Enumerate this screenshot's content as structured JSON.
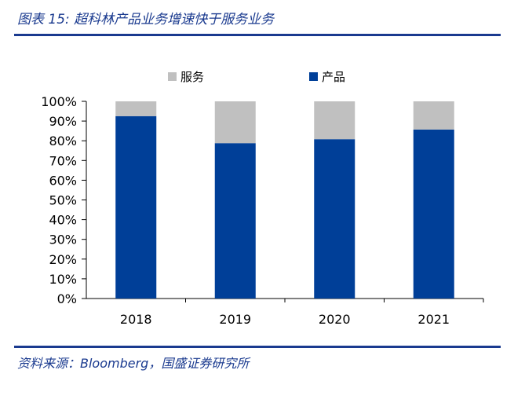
{
  "figure": {
    "title": "图表 15: 超科林产品业务增速快于服务业务",
    "source": "资料来源：Bloomberg，国盛证券研究所"
  },
  "colors": {
    "rule": "#1a3a8f",
    "title_text": "#1a3a8f"
  },
  "chart_data": {
    "type": "bar",
    "stacked": true,
    "categories": [
      "2018",
      "2019",
      "2020",
      "2021"
    ],
    "series": [
      {
        "name": "产品",
        "color": "#003f98",
        "values": [
          92.5,
          78.8,
          80.8,
          85.7
        ]
      },
      {
        "name": "服务",
        "color": "#c0c0c0",
        "values": [
          7.5,
          21.2,
          19.2,
          14.3
        ]
      }
    ],
    "yticks": [
      "0%",
      "10%",
      "20%",
      "30%",
      "40%",
      "50%",
      "60%",
      "70%",
      "80%",
      "90%",
      "100%"
    ],
    "ylim": [
      0,
      100
    ],
    "legend_order": [
      "服务",
      "产品"
    ],
    "legend_position": "top-center",
    "grid": false
  }
}
